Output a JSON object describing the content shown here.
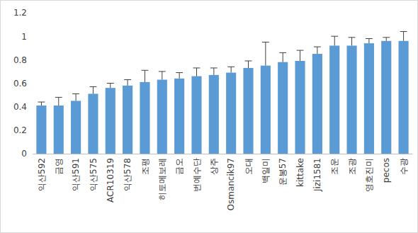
{
  "chart_data": {
    "type": "bar",
    "categories": [
      "익산592",
      "금영",
      "익산591",
      "익산575",
      "ACR10319",
      "익산578",
      "조평",
      "히토메보레",
      "금오",
      "번예수단",
      "상주",
      "Osmancik97",
      "오대",
      "백일미",
      "운봉57",
      "kittake",
      "Jizi1581",
      "조운",
      "조광",
      "영호진미",
      "pecos",
      "수광"
    ],
    "values": [
      0.41,
      0.41,
      0.45,
      0.51,
      0.56,
      0.58,
      0.61,
      0.63,
      0.64,
      0.66,
      0.67,
      0.69,
      0.73,
      0.75,
      0.78,
      0.79,
      0.85,
      0.92,
      0.92,
      0.94,
      0.96,
      0.96
    ],
    "errors": [
      0.03,
      0.07,
      0.06,
      0.06,
      0.04,
      0.05,
      0.1,
      0.07,
      0.05,
      0.07,
      0.06,
      0.05,
      0.06,
      0.2,
      0.08,
      0.09,
      0.06,
      0.08,
      0.07,
      0.04,
      0.03,
      0.08
    ],
    "color": "#5b9bd5",
    "ylim": [
      0,
      1.2
    ],
    "yticks": [
      0,
      0.2,
      0.4,
      0.6,
      0.8,
      1,
      1.2
    ],
    "grid": false
  }
}
